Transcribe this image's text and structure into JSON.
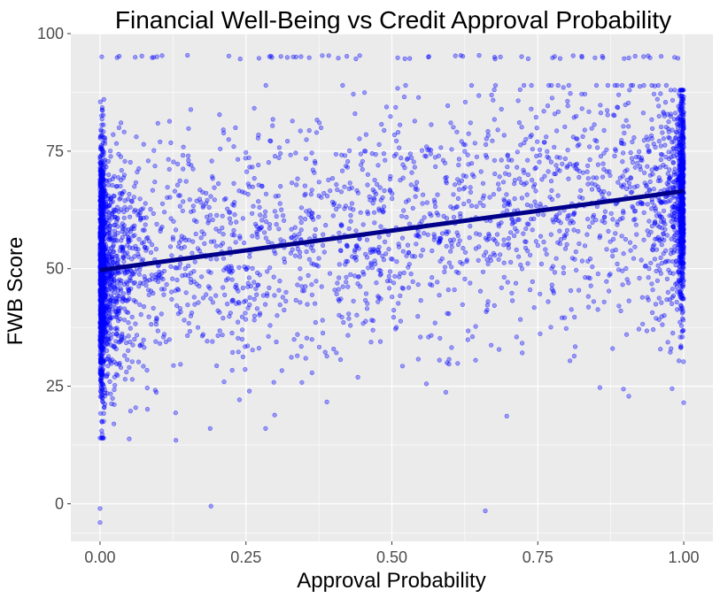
{
  "chart_data": {
    "type": "scatter",
    "title": "Financial Well-Being vs Credit Approval Probability",
    "xlabel": "Approval Probability",
    "ylabel": "FWB Score",
    "xlim": [
      -0.05,
      1.05
    ],
    "ylim": [
      -8,
      100
    ],
    "x_ticks": [
      0,
      0.25,
      0.5,
      0.75,
      1
    ],
    "x_tick_labels": [
      "0.00",
      "0.25",
      "0.50",
      "0.75",
      "1.00"
    ],
    "y_ticks": [
      0,
      25,
      50,
      75,
      100
    ],
    "y_tick_labels": [
      "0",
      "25",
      "50",
      "75",
      "100"
    ],
    "grid": true,
    "panel_background": "#ebebeb",
    "point_color": "#0000ff",
    "point_alpha": 0.35,
    "trend_line": {
      "type": "linear",
      "color": "#00008b",
      "points": [
        [
          0,
          49.7
        ],
        [
          1,
          66.5
        ]
      ]
    },
    "points_overview": {
      "cluster_near_x0": "dense vertical band at x = 0.00 spanning roughly 14 to 86, centered near 50",
      "cluster_near_x1": "dense vertical band at x = 1.00 spanning roughly 30 to 95, centered near 65",
      "ceiling_row_y": 95,
      "outliers": [
        [
          0.0,
          -1
        ],
        [
          0.0,
          -4
        ],
        [
          0.19,
          -0.5
        ],
        [
          0.66,
          -1.5
        ],
        [
          1.0,
          21.5
        ],
        [
          0.98,
          24.5
        ],
        [
          0.13,
          13.5
        ],
        [
          0.05,
          13.8
        ]
      ]
    }
  }
}
